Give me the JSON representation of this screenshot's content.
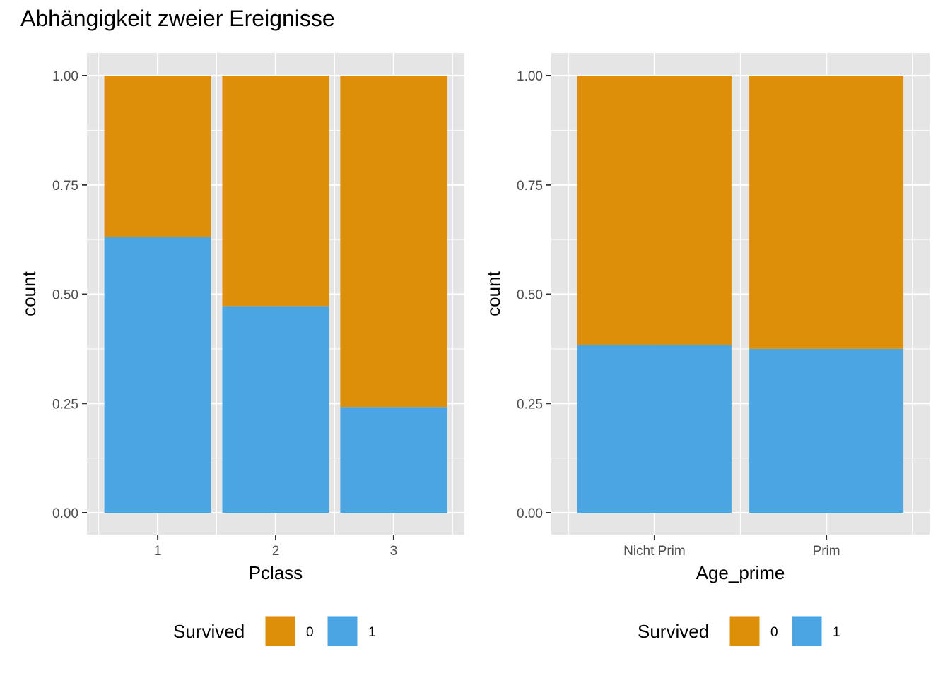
{
  "title": "Abhängigkeit zweier Ereignisse",
  "colors": {
    "survived_0": "#DE8F09",
    "survived_1": "#4AA5E2",
    "panel_bg": "#E5E5E5",
    "grid": "#FFFFFF"
  },
  "chart_data": [
    {
      "type": "bar",
      "stacked": true,
      "position": "fill",
      "xlabel": "Pclass",
      "ylabel": "count",
      "categories": [
        "1",
        "2",
        "3"
      ],
      "ylim": [
        0,
        1
      ],
      "yticks": [
        "0.00",
        "0.25",
        "0.50",
        "0.75",
        "1.00"
      ],
      "series": [
        {
          "name": "1",
          "values": [
            0.63,
            0.473,
            0.242
          ]
        },
        {
          "name": "0",
          "values": [
            0.37,
            0.527,
            0.758
          ]
        }
      ],
      "legend": {
        "title": "Survived",
        "position": "bottom",
        "items": [
          "0",
          "1"
        ]
      },
      "grid": true
    },
    {
      "type": "bar",
      "stacked": true,
      "position": "fill",
      "xlabel": "Age_prime",
      "ylabel": "count",
      "categories": [
        "Nicht Prim",
        "Prim"
      ],
      "ylim": [
        0,
        1
      ],
      "yticks": [
        "0.00",
        "0.25",
        "0.50",
        "0.75",
        "1.00"
      ],
      "series": [
        {
          "name": "1",
          "values": [
            0.384,
            0.375
          ]
        },
        {
          "name": "0",
          "values": [
            0.616,
            0.625
          ]
        }
      ],
      "legend": {
        "title": "Survived",
        "position": "bottom",
        "items": [
          "0",
          "1"
        ]
      },
      "grid": true
    }
  ]
}
